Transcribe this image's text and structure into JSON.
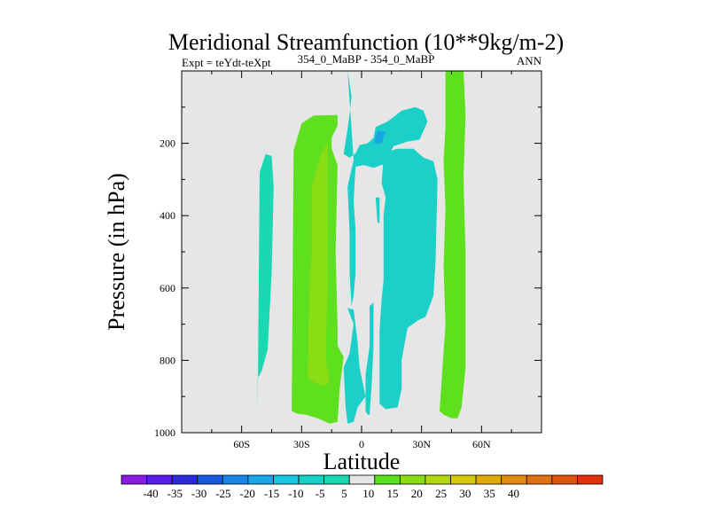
{
  "chart_data": {
    "type": "heatmap",
    "title": "Meridional Streamfunction (10**9kg/m-2)",
    "subtitle_center": "354_0_MaBP - 354_0_MaBP",
    "subtitle_left": "Expt = teYdt-teXpt",
    "subtitle_right": "ANN",
    "xlabel": "Latitude",
    "ylabel": "Pressure (in hPa)",
    "xlim": [
      -90,
      90
    ],
    "ylim": [
      1000,
      0
    ],
    "x_ticks": [
      {
        "value": -60,
        "label": "60S"
      },
      {
        "value": -30,
        "label": "30S"
      },
      {
        "value": 0,
        "label": "0"
      },
      {
        "value": 30,
        "label": "30N"
      },
      {
        "value": 60,
        "label": "60N"
      }
    ],
    "y_ticks": [
      {
        "value": 200,
        "label": "200"
      },
      {
        "value": 400,
        "label": "400"
      },
      {
        "value": 600,
        "label": "600"
      },
      {
        "value": 800,
        "label": "800"
      },
      {
        "value": 1000,
        "label": "1000"
      }
    ],
    "background_color": "#e6e6e6",
    "colorbar": {
      "colors": [
        "#8a1ce0",
        "#5a1ce8",
        "#2a2ad8",
        "#1b58e0",
        "#1a84e6",
        "#19a6e6",
        "#1cc6e0",
        "#1ad0c8",
        "#19d8b2",
        "#e6e6e6",
        "#5ee01e",
        "#8adc14",
        "#b4d810",
        "#d6c80c",
        "#e0aa0a",
        "#e08c0c",
        "#e07010",
        "#e05412",
        "#e0320c"
      ],
      "labels": [
        "-40",
        "-35",
        "-30",
        "-25",
        "-20",
        "-15",
        "-10",
        "-5",
        "5",
        "10",
        "15",
        "20",
        "25",
        "30",
        "35",
        "40"
      ]
    },
    "regions": [
      {
        "name": "south-cell-negative",
        "value": -10,
        "color": "#19d8b2",
        "polygon": [
          [
            -52,
            950
          ],
          [
            -51,
            280
          ],
          [
            -48,
            230
          ],
          [
            -45,
            235
          ],
          [
            -44,
            320
          ],
          [
            -45,
            560
          ],
          [
            -47,
            770
          ],
          [
            -50,
            830
          ],
          [
            -52,
            850
          ]
        ]
      },
      {
        "name": "south-ferrel-positive",
        "value": 5,
        "color": "#5ee01e",
        "polygon": [
          [
            -35,
            940
          ],
          [
            -34,
            220
          ],
          [
            -30,
            145
          ],
          [
            -24,
            123
          ],
          [
            -12,
            122
          ],
          [
            -12,
            150
          ],
          [
            -15,
            185
          ],
          [
            -15,
            215
          ],
          [
            -12,
            260
          ],
          [
            -13,
            500
          ],
          [
            -12,
            705
          ],
          [
            -12,
            760
          ],
          [
            -9,
            790
          ],
          [
            -11,
            880
          ],
          [
            -12,
            970
          ],
          [
            -16,
            975
          ],
          [
            -22,
            960
          ],
          [
            -28,
            950
          ],
          [
            -32,
            948
          ]
        ]
      },
      {
        "name": "south-ferrel-core",
        "value": 10,
        "color": "#8adc14",
        "polygon": [
          [
            -27,
            850
          ],
          [
            -26,
            570
          ],
          [
            -25,
            520
          ],
          [
            -25,
            320
          ],
          [
            -20,
            225
          ],
          [
            -17,
            200
          ],
          [
            -17,
            260
          ],
          [
            -17,
            420
          ],
          [
            -17,
            600
          ],
          [
            -18,
            790
          ],
          [
            -16,
            860
          ],
          [
            -19,
            870
          ],
          [
            -24,
            860
          ]
        ]
      },
      {
        "name": "equatorial-negative-upper",
        "value": -5,
        "color": "#1ad0c8",
        "polygon": [
          [
            -7,
            0
          ],
          [
            -5,
            70
          ],
          [
            -6,
            120
          ],
          [
            -7,
            160
          ],
          [
            -9,
            230
          ],
          [
            -6,
            240
          ],
          [
            -3,
            228
          ],
          [
            -1,
            205
          ],
          [
            3,
            200
          ],
          [
            6,
            185
          ],
          [
            7,
            155
          ],
          [
            13,
            140
          ],
          [
            20,
            110
          ],
          [
            27,
            100
          ],
          [
            31,
            110
          ],
          [
            33,
            140
          ],
          [
            29,
            190
          ],
          [
            23,
            195
          ],
          [
            16,
            208
          ],
          [
            11,
            258
          ],
          [
            6,
            268
          ],
          [
            1,
            260
          ],
          [
            -3,
            265
          ],
          [
            -4,
            360
          ],
          [
            -3,
            440
          ],
          [
            -3,
            560
          ],
          [
            -4,
            620
          ],
          [
            -5,
            650
          ],
          [
            -6,
            560
          ],
          [
            -6,
            450
          ],
          [
            -7,
            320
          ],
          [
            -4,
            245
          ],
          [
            -7,
            0
          ]
        ]
      },
      {
        "name": "equatorial-negative-core",
        "value": -10,
        "color": "#19a6e6",
        "polygon": [
          [
            6,
            200
          ],
          [
            8,
            165
          ],
          [
            12,
            168
          ],
          [
            10,
            200
          ]
        ]
      },
      {
        "name": "equatorial-negative-lower",
        "value": -5,
        "color": "#1ad0c8",
        "polygon": [
          [
            -8,
            930
          ],
          [
            -9,
            820
          ],
          [
            -6,
            780
          ],
          [
            -4,
            700
          ],
          [
            -7,
            655
          ],
          [
            -4,
            660
          ],
          [
            -2,
            750
          ],
          [
            -1,
            820
          ],
          [
            2,
            900
          ],
          [
            -2,
            930
          ],
          [
            -4,
            970
          ],
          [
            -7,
            975
          ]
        ]
      },
      {
        "name": "north-hadley-negative",
        "value": -5,
        "color": "#1ad0c8",
        "polygon": [
          [
            9,
            810
          ],
          [
            9,
            720
          ],
          [
            10,
            630
          ],
          [
            11,
            580
          ],
          [
            11,
            480
          ],
          [
            11,
            400
          ],
          [
            12,
            350
          ],
          [
            10,
            310
          ],
          [
            11,
            240
          ],
          [
            15,
            220
          ],
          [
            18,
            215
          ],
          [
            26,
            215
          ],
          [
            31,
            240
          ],
          [
            36,
            250
          ],
          [
            38,
            300
          ],
          [
            37,
            520
          ],
          [
            36,
            620
          ],
          [
            32,
            680
          ],
          [
            28,
            690
          ],
          [
            23,
            710
          ],
          [
            20,
            800
          ],
          [
            20,
            880
          ],
          [
            18,
            930
          ],
          [
            12,
            935
          ],
          [
            9,
            920
          ]
        ]
      },
      {
        "name": "north-thin-negative",
        "value": -5,
        "color": "#1ad0c8",
        "polygon": [
          [
            2,
            940
          ],
          [
            2,
            840
          ],
          [
            4,
            760
          ],
          [
            4,
            650
          ],
          [
            6,
            640
          ],
          [
            6,
            760
          ],
          [
            5,
            870
          ],
          [
            4,
            950
          ],
          [
            3,
            950
          ]
        ]
      },
      {
        "name": "small-cell",
        "value": -5,
        "color": "#1ad0c8",
        "polygon": [
          [
            8,
            420
          ],
          [
            7,
            350
          ],
          [
            9,
            350
          ],
          [
            9,
            420
          ]
        ]
      },
      {
        "name": "north-ferrel-positive",
        "value": 5,
        "color": "#5ee01e",
        "polygon": [
          [
            39,
            940
          ],
          [
            40,
            860
          ],
          [
            42,
            700
          ],
          [
            41,
            540
          ],
          [
            42,
            380
          ],
          [
            41,
            250
          ],
          [
            42,
            150
          ],
          [
            42,
            0
          ],
          [
            45,
            0
          ],
          [
            48,
            0
          ],
          [
            51,
            0
          ],
          [
            52,
            120
          ],
          [
            51,
            300
          ],
          [
            52,
            500
          ],
          [
            52,
            560
          ],
          [
            52,
            820
          ],
          [
            50,
            930
          ],
          [
            48,
            960
          ],
          [
            45,
            960
          ],
          [
            41,
            950
          ]
        ]
      }
    ]
  }
}
